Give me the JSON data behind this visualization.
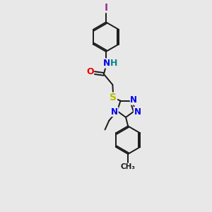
{
  "bg_color": "#e8e8e8",
  "bond_color": "#1a1a1a",
  "bond_width": 1.4,
  "atom_colors": {
    "C": "#1a1a1a",
    "N": "#0000ee",
    "O": "#ee0000",
    "S": "#bbbb00",
    "I": "#993399",
    "H": "#008888"
  },
  "fig_w": 3.0,
  "fig_h": 3.0,
  "dpi": 100,
  "xlim": [
    0,
    10
  ],
  "ylim": [
    0,
    14
  ],
  "font_size": 8.5
}
